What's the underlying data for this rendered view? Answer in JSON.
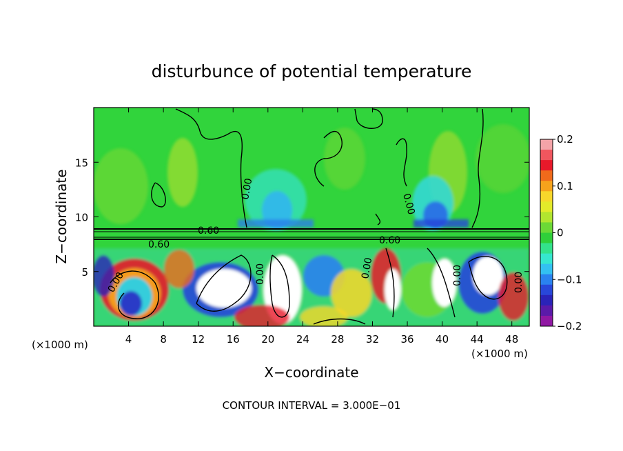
{
  "chart_data": {
    "type": "heatmap",
    "title": "disturbunce of potential temperature",
    "xlabel": "X−coordinate",
    "ylabel": "Z−coordinate",
    "x_unit": "(×1000 m)",
    "z_unit": "(×1000 m)",
    "xlim": [
      0,
      50
    ],
    "zlim": [
      0,
      20
    ],
    "x_ticks": [
      "4",
      "8",
      "12",
      "16",
      "20",
      "24",
      "28",
      "32",
      "36",
      "40",
      "44",
      "48"
    ],
    "z_ticks": [
      "5",
      "10",
      "15"
    ],
    "colorbar": {
      "ticks": [
        "0.2",
        "0.1",
        "0",
        "−0.1",
        "−0.2"
      ],
      "range": [
        -0.2,
        0.2
      ],
      "colors": [
        "#f4a3a8",
        "#f0565e",
        "#e8192a",
        "#f06a1b",
        "#f6a31c",
        "#f7d72b",
        "#e3ea2a",
        "#b2e52f",
        "#6cd936",
        "#2fcf3a",
        "#33e28b",
        "#36e7cf",
        "#33c1f1",
        "#2a82ef",
        "#2847d9",
        "#2a23b8",
        "#5a1aa9",
        "#9018a3"
      ]
    },
    "contour_labels": [
      "0.60",
      "0.60",
      "0.60",
      "0.00",
      "0.00",
      "0.00",
      "0.00",
      "0.00",
      "0.00",
      "0.00"
    ],
    "contour_interval_text": "CONTOUR INTERVAL = 3.000E−01"
  }
}
